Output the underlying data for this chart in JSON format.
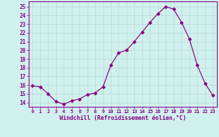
{
  "x": [
    0,
    1,
    2,
    3,
    4,
    5,
    6,
    7,
    8,
    9,
    10,
    11,
    12,
    13,
    14,
    15,
    16,
    17,
    18,
    19,
    20,
    21,
    22,
    23
  ],
  "y": [
    15.9,
    15.8,
    15.0,
    14.1,
    13.8,
    14.2,
    14.4,
    14.9,
    15.1,
    15.8,
    18.3,
    19.7,
    20.0,
    21.0,
    22.1,
    23.2,
    24.2,
    25.0,
    24.7,
    23.2,
    21.3,
    18.3,
    16.2,
    14.8
  ],
  "line_color": "#880088",
  "marker_color": "#880088",
  "background_color": "#d0f0ee",
  "grid_color": "#b8d8d5",
  "xlabel": "Windchill (Refroidissement éolien,°C)",
  "ylabel_ticks": [
    14,
    15,
    16,
    17,
    18,
    19,
    20,
    21,
    22,
    23,
    24,
    25
  ],
  "ylim": [
    13.5,
    25.6
  ],
  "xlim": [
    -0.5,
    23.5
  ],
  "tick_color": "#880088",
  "label_color": "#880088",
  "font_family": "monospace",
  "xtick_fontsize": 5.0,
  "ytick_fontsize": 5.5,
  "xlabel_fontsize": 6.0
}
